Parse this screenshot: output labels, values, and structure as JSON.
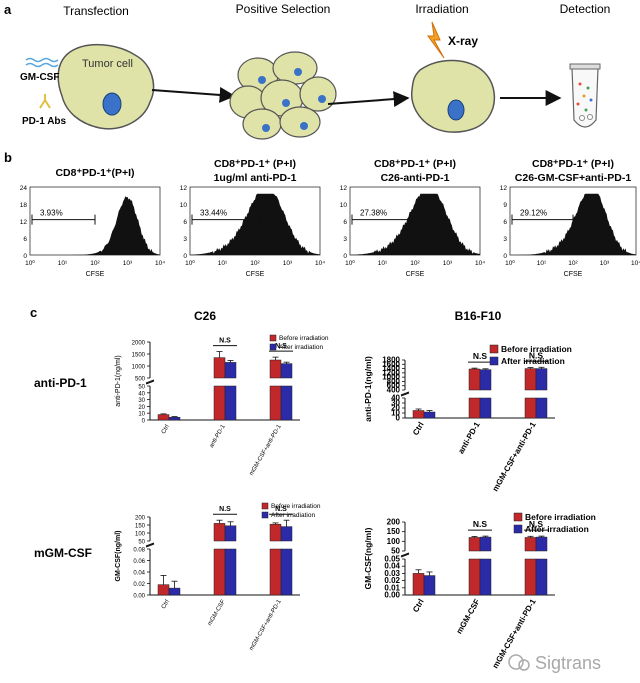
{
  "panel_a": {
    "letter": "a",
    "steps": [
      "Transfection",
      "Positive Selection",
      "Irradiation",
      "Detection"
    ],
    "cell_label": "Tumor cell",
    "gm_label": "GM-CSF",
    "pd1_label": "PD-1 Abs",
    "xray_label": "X-ray"
  },
  "panel_b": {
    "letter": "b",
    "xlabel": "CFSE",
    "plots": [
      {
        "title_lines": [
          "CD8⁺PD-1⁺(P+I)"
        ],
        "percent": "3.93%",
        "y_ticks": [
          "0",
          "6",
          "12",
          "18",
          "24"
        ]
      },
      {
        "title_lines": [
          "CD8⁺PD-1⁺ (P+I)",
          "1ug/ml anti-PD-1"
        ],
        "percent": "33.44%",
        "y_ticks": [
          "0",
          "3",
          "6",
          "10",
          "12"
        ]
      },
      {
        "title_lines": [
          "CD8⁺PD-1⁺ (P+I)",
          "C26-anti-PD-1"
        ],
        "percent": "27.38%",
        "y_ticks": [
          "0",
          "3",
          "6",
          "10",
          "12"
        ]
      },
      {
        "title_lines": [
          "CD8⁺PD-1⁺ (P+I)",
          "C26-GM-CSF+anti-PD-1"
        ],
        "percent": "29.12%",
        "y_ticks": [
          "0",
          "3",
          "6",
          "9",
          "12"
        ]
      }
    ],
    "x_ticks": [
      "10⁰",
      "10¹",
      "10²",
      "10³",
      "10⁴"
    ]
  },
  "panel_c": {
    "letter": "c",
    "col_titles": [
      "C26",
      "B16-F10"
    ],
    "row_labels": [
      "anti-PD-1",
      "mGM-CSF"
    ],
    "ns_label": "N.S",
    "colors": {
      "before": "#c0282a",
      "after": "#2b2ba8"
    }
  },
  "watermark": "Sigtrans",
  "chart_data": [
    {
      "type": "bar",
      "row": "anti-PD-1",
      "column": "C26",
      "ylabel": "anti-PD-1(ng/ml)",
      "categories": [
        "Ctrl",
        "anti-PD-1",
        "mGM-CSF+anti-PD-1"
      ],
      "series": [
        {
          "name": "Before irradiation",
          "values": [
            8,
            1350,
            1250
          ],
          "errors": [
            1,
            250,
            120
          ]
        },
        {
          "name": "After irradiation",
          "values": [
            4,
            1150,
            1100
          ],
          "errors": [
            1,
            80,
            60
          ]
        }
      ],
      "y_ticks": [
        "0",
        "10",
        "20",
        "30",
        "40",
        "50",
        "500",
        "1000",
        "1500",
        "2000"
      ],
      "axis_break": [
        50,
        500
      ],
      "ylim": [
        0,
        2000
      ],
      "annotations": [
        "N.S",
        "N.S"
      ]
    },
    {
      "type": "bar",
      "row": "anti-PD-1",
      "column": "B16-F10",
      "ylabel": "anti-PD-1(ng/ml)",
      "categories": [
        "Ctrl",
        "anti-PD-1",
        "mGM-CSF+anti-PD-1"
      ],
      "series": [
        {
          "name": "Before irradiation",
          "values": [
            15,
            1380,
            1400
          ],
          "errors": [
            3,
            40,
            50
          ]
        },
        {
          "name": "After irradiation",
          "values": [
            12,
            1350,
            1400
          ],
          "errors": [
            3,
            40,
            60
          ]
        }
      ],
      "y_ticks": [
        "0",
        "10",
        "20",
        "30",
        "40",
        "400",
        "600",
        "800",
        "1000",
        "1200",
        "1400",
        "1600",
        "1800"
      ],
      "axis_break": [
        40,
        400
      ],
      "ylim": [
        0,
        1800
      ],
      "annotations": [
        "N.S",
        "N.S"
      ]
    },
    {
      "type": "bar",
      "row": "mGM-CSF",
      "column": "C26",
      "ylabel": "GM-CSF(ng/ml)",
      "categories": [
        "Ctrl",
        "mGM-CSF",
        "mGM-CSF+anti-PD-1"
      ],
      "series": [
        {
          "name": "Before irradiation",
          "values": [
            0.018,
            160,
            155
          ],
          "errors": [
            0.016,
            20,
            8
          ]
        },
        {
          "name": "After irradiation",
          "values": [
            0.012,
            145,
            140
          ],
          "errors": [
            0.012,
            25,
            40
          ]
        }
      ],
      "y_ticks": [
        "0.00",
        "0.02",
        "0.04",
        "0.06",
        "0.08",
        "50",
        "100",
        "150",
        "200"
      ],
      "axis_break": [
        0.08,
        50
      ],
      "ylim": [
        0,
        200
      ],
      "annotations": [
        "N.S",
        "N.S"
      ]
    },
    {
      "type": "bar",
      "row": "mGM-CSF",
      "column": "B16-F10",
      "ylabel": "GM-CSF(ng/ml)",
      "categories": [
        "Ctrl",
        "mGM-CSF",
        "mGM-CSF+anti-PD-1"
      ],
      "series": [
        {
          "name": "Before irradiation",
          "values": [
            0.03,
            120,
            120
          ],
          "errors": [
            0.005,
            5,
            6
          ]
        },
        {
          "name": "After irradiation",
          "values": [
            0.027,
            122,
            122
          ],
          "errors": [
            0.005,
            5,
            5
          ]
        }
      ],
      "y_ticks": [
        "0.00",
        "0.01",
        "0.02",
        "0.03",
        "0.04",
        "0.05",
        "50",
        "100",
        "150",
        "200"
      ],
      "axis_break": [
        0.05,
        50
      ],
      "ylim": [
        0,
        200
      ],
      "annotations": [
        "N.S",
        "N.S"
      ]
    }
  ]
}
